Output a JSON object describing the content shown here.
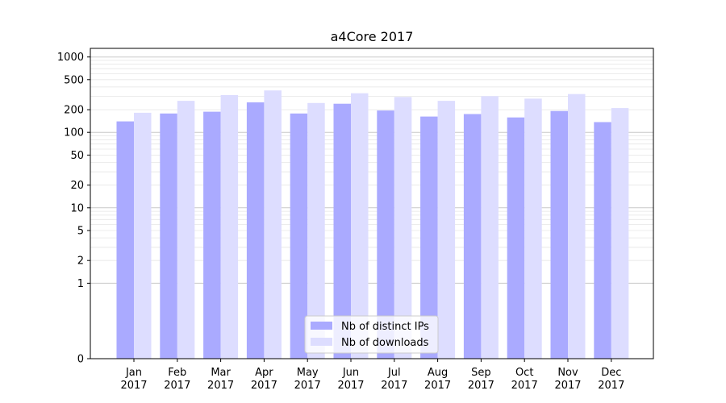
{
  "chart_data": {
    "type": "bar",
    "title": "a4Core 2017",
    "xlabel": "",
    "ylabel": "",
    "yscale": "symlog",
    "ylim": [
      0,
      1300
    ],
    "yticks": [
      {
        "value": 0,
        "label": "0"
      },
      {
        "value": 1,
        "label": "1"
      },
      {
        "value": 2,
        "label": "2"
      },
      {
        "value": 5,
        "label": "5"
      },
      {
        "value": 10,
        "label": "10"
      },
      {
        "value": 20,
        "label": "20"
      },
      {
        "value": 50,
        "label": "50"
      },
      {
        "value": 100,
        "label": "100"
      },
      {
        "value": 200,
        "label": "200"
      },
      {
        "value": 500,
        "label": "500"
      },
      {
        "value": 1000,
        "label": "1000"
      }
    ],
    "grid": true,
    "legend_position": "bottom-center",
    "categories": [
      {
        "month": "Jan",
        "year": "2017"
      },
      {
        "month": "Feb",
        "year": "2017"
      },
      {
        "month": "Mar",
        "year": "2017"
      },
      {
        "month": "Apr",
        "year": "2017"
      },
      {
        "month": "May",
        "year": "2017"
      },
      {
        "month": "Jun",
        "year": "2017"
      },
      {
        "month": "Jul",
        "year": "2017"
      },
      {
        "month": "Aug",
        "year": "2017"
      },
      {
        "month": "Sep",
        "year": "2017"
      },
      {
        "month": "Oct",
        "year": "2017"
      },
      {
        "month": "Nov",
        "year": "2017"
      },
      {
        "month": "Dec",
        "year": "2017"
      }
    ],
    "series": [
      {
        "name": "Nb of distinct IPs",
        "color": "#aaaaff",
        "values": [
          140,
          178,
          188,
          250,
          178,
          240,
          195,
          162,
          175,
          158,
          192,
          137
        ]
      },
      {
        "name": "Nb of downloads",
        "color": "#ddddff",
        "values": [
          182,
          262,
          312,
          360,
          245,
          330,
          295,
          262,
          302,
          280,
          322,
          210
        ]
      }
    ]
  }
}
